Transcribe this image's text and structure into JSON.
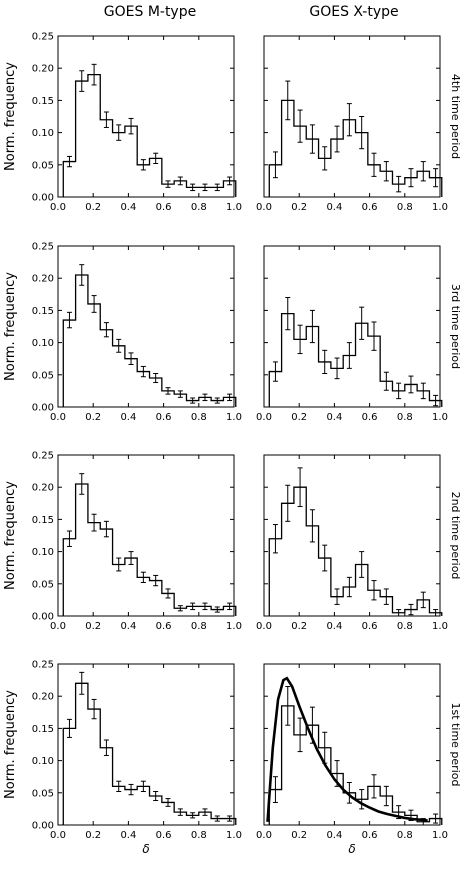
{
  "figure": {
    "column_titles": [
      "GOES M-type",
      "GOES X-type"
    ],
    "row_labels": [
      "4th time period",
      "3rd time period",
      "2nd time period",
      "1st time period"
    ],
    "ylabel": "Norm. frequency",
    "xlabel": "δ"
  },
  "chart_data": [
    {
      "type": "bar",
      "panel": "GOES M-type / 4th time period",
      "xlim": [
        0,
        1
      ],
      "ylim": [
        0,
        0.25
      ],
      "values": [
        0.055,
        0.18,
        0.19,
        0.12,
        0.1,
        0.11,
        0.05,
        0.06,
        0.02,
        0.025,
        0.015,
        0.015,
        0.015,
        0.025
      ],
      "errors": [
        0.008,
        0.016,
        0.016,
        0.012,
        0.012,
        0.012,
        0.008,
        0.008,
        0.005,
        0.006,
        0.005,
        0.005,
        0.005,
        0.006
      ]
    },
    {
      "type": "bar",
      "panel": "GOES X-type / 4th time period",
      "xlim": [
        0,
        1
      ],
      "ylim": [
        0,
        0.25
      ],
      "values": [
        0.05,
        0.15,
        0.11,
        0.09,
        0.06,
        0.09,
        0.12,
        0.1,
        0.05,
        0.04,
        0.02,
        0.03,
        0.04,
        0.03
      ],
      "errors": [
        0.02,
        0.03,
        0.025,
        0.022,
        0.018,
        0.02,
        0.025,
        0.025,
        0.018,
        0.015,
        0.012,
        0.014,
        0.015,
        0.014
      ]
    },
    {
      "type": "bar",
      "panel": "GOES M-type / 3rd time period",
      "xlim": [
        0,
        1
      ],
      "ylim": [
        0,
        0.25
      ],
      "values": [
        0.135,
        0.205,
        0.16,
        0.12,
        0.095,
        0.075,
        0.055,
        0.045,
        0.025,
        0.02,
        0.01,
        0.015,
        0.01,
        0.015
      ],
      "errors": [
        0.012,
        0.016,
        0.013,
        0.011,
        0.01,
        0.009,
        0.008,
        0.007,
        0.005,
        0.005,
        0.004,
        0.005,
        0.004,
        0.005
      ]
    },
    {
      "type": "bar",
      "panel": "GOES X-type / 3rd time period",
      "xlim": [
        0,
        1
      ],
      "ylim": [
        0,
        0.25
      ],
      "values": [
        0.055,
        0.145,
        0.105,
        0.125,
        0.07,
        0.06,
        0.08,
        0.13,
        0.11,
        0.04,
        0.025,
        0.035,
        0.025,
        0.01
      ],
      "errors": [
        0.015,
        0.025,
        0.022,
        0.025,
        0.018,
        0.016,
        0.02,
        0.025,
        0.022,
        0.014,
        0.012,
        0.013,
        0.012,
        0.008
      ]
    },
    {
      "type": "bar",
      "panel": "GOES M-type / 2nd time period",
      "xlim": [
        0,
        1
      ],
      "ylim": [
        0,
        0.25
      ],
      "values": [
        0.12,
        0.205,
        0.145,
        0.135,
        0.08,
        0.09,
        0.06,
        0.055,
        0.035,
        0.012,
        0.015,
        0.015,
        0.01,
        0.015
      ],
      "errors": [
        0.012,
        0.016,
        0.013,
        0.012,
        0.01,
        0.01,
        0.008,
        0.008,
        0.007,
        0.004,
        0.005,
        0.005,
        0.004,
        0.005
      ]
    },
    {
      "type": "bar",
      "panel": "GOES X-type / 2nd time period",
      "xlim": [
        0,
        1
      ],
      "ylim": [
        0,
        0.25
      ],
      "values": [
        0.12,
        0.175,
        0.2,
        0.14,
        0.09,
        0.03,
        0.045,
        0.08,
        0.04,
        0.03,
        0.005,
        0.01,
        0.025,
        0.005
      ],
      "errors": [
        0.022,
        0.028,
        0.03,
        0.025,
        0.02,
        0.012,
        0.015,
        0.02,
        0.015,
        0.012,
        0.005,
        0.008,
        0.012,
        0.005
      ]
    },
    {
      "type": "bar",
      "panel": "GOES M-type / 1st time period",
      "xlim": [
        0,
        1
      ],
      "ylim": [
        0,
        0.25
      ],
      "values": [
        0.15,
        0.22,
        0.18,
        0.12,
        0.06,
        0.055,
        0.06,
        0.045,
        0.035,
        0.02,
        0.015,
        0.02,
        0.01,
        0.01
      ],
      "errors": [
        0.014,
        0.017,
        0.015,
        0.012,
        0.008,
        0.008,
        0.008,
        0.007,
        0.006,
        0.005,
        0.004,
        0.005,
        0.004,
        0.004
      ]
    },
    {
      "type": "bar",
      "panel": "GOES X-type / 1st time period",
      "xlim": [
        0,
        1
      ],
      "ylim": [
        0,
        0.25
      ],
      "values": [
        0.055,
        0.185,
        0.14,
        0.155,
        0.12,
        0.08,
        0.05,
        0.04,
        0.06,
        0.045,
        0.02,
        0.015,
        0.005,
        0.01
      ],
      "errors": [
        0.02,
        0.03,
        0.026,
        0.028,
        0.024,
        0.02,
        0.016,
        0.015,
        0.018,
        0.015,
        0.01,
        0.008,
        0.005,
        0.007
      ],
      "fit_curve": {
        "x": [
          0.02,
          0.05,
          0.08,
          0.11,
          0.13,
          0.16,
          0.2,
          0.25,
          0.3,
          0.35,
          0.4,
          0.45,
          0.5,
          0.55,
          0.6,
          0.65,
          0.7,
          0.75,
          0.8,
          0.85,
          0.9,
          0.93
        ],
        "y": [
          0.005,
          0.12,
          0.195,
          0.225,
          0.228,
          0.215,
          0.185,
          0.15,
          0.118,
          0.092,
          0.071,
          0.055,
          0.043,
          0.034,
          0.027,
          0.021,
          0.017,
          0.014,
          0.011,
          0.009,
          0.008,
          0.007
        ]
      }
    }
  ],
  "axes": {
    "x_ticks": [
      "0.0",
      "0.2",
      "0.4",
      "0.6",
      "0.8",
      "1.0"
    ],
    "y_ticks": [
      "0.00",
      "0.05",
      "0.10",
      "0.15",
      "0.20",
      "0.25"
    ]
  }
}
